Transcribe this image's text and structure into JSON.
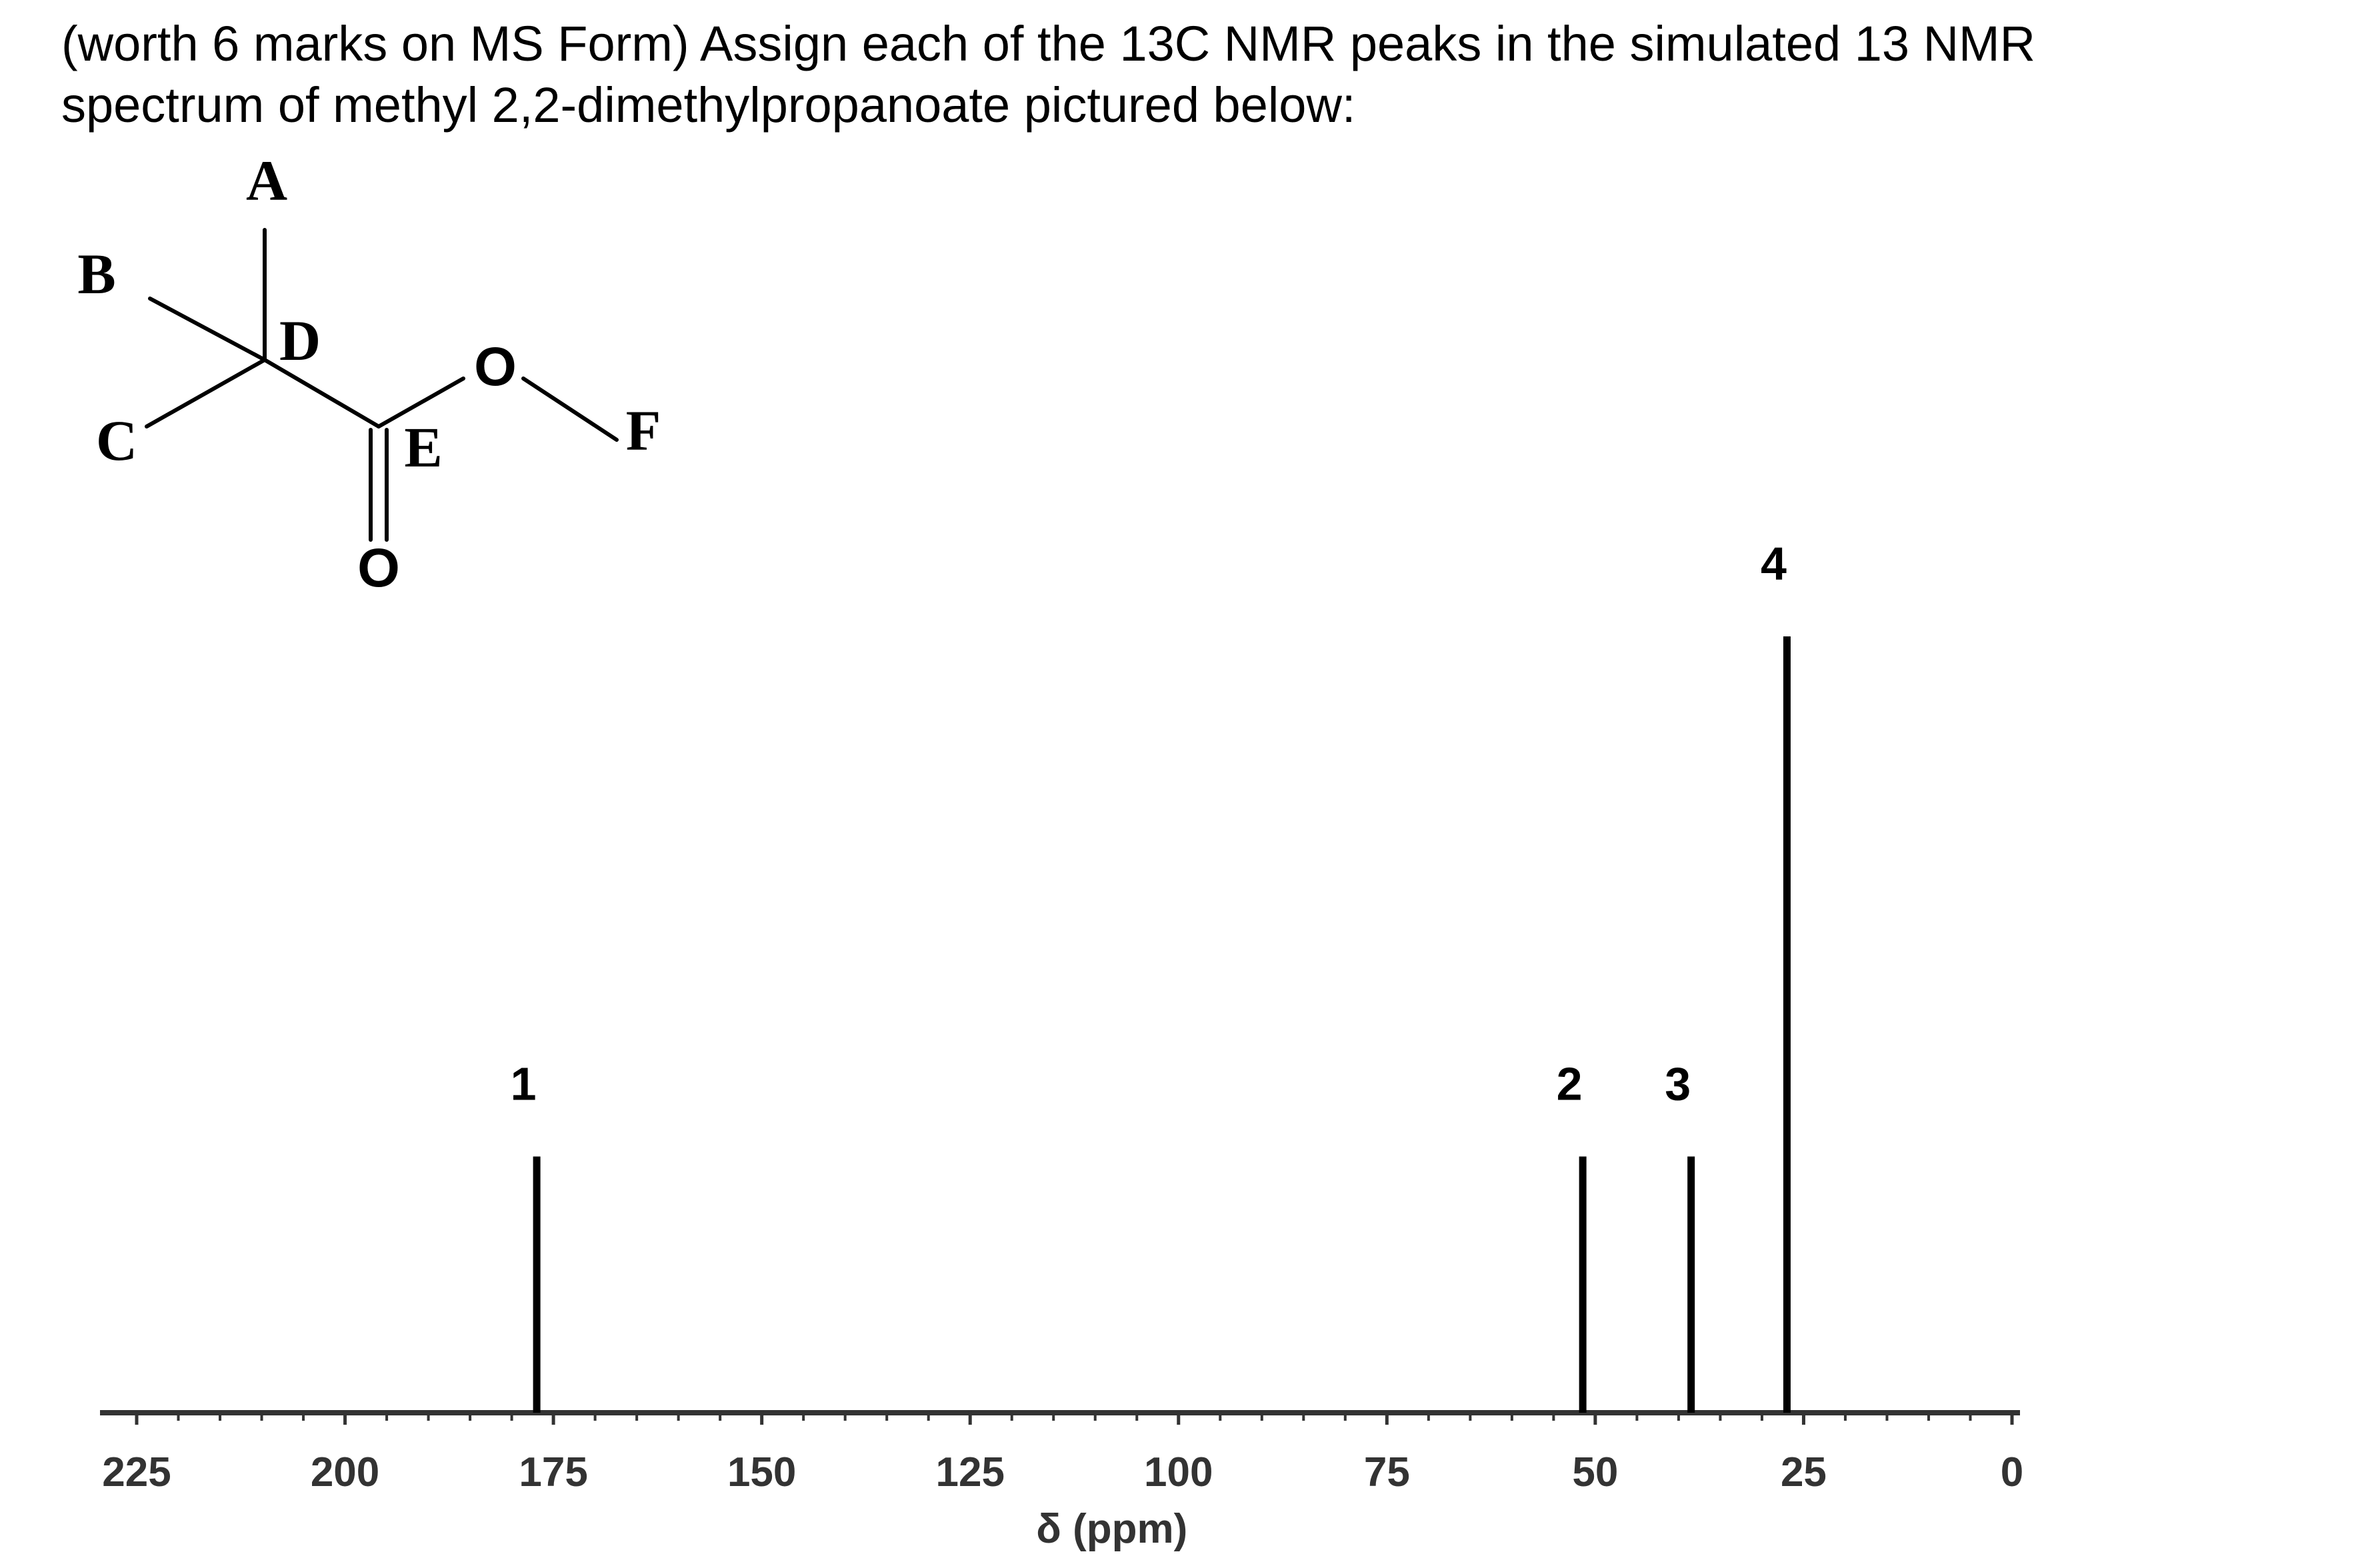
{
  "question": {
    "line1": "(worth 6 marks on MS Form)  Assign each of the 13C NMR peaks in the simulated 13 NMR",
    "line2": "spectrum of methyl 2,2-dimethylpropanoate pictured below:"
  },
  "structure": {
    "labels": {
      "A": "A",
      "B": "B",
      "C": "C",
      "D": "D",
      "E": "E",
      "F": "F"
    },
    "atoms": {
      "ester_o": "O",
      "carbonyl_o": "O"
    }
  },
  "chart_data": {
    "type": "bar",
    "title": "",
    "xlabel": "δ (ppm)",
    "ylabel": "",
    "xlim": [
      225,
      0
    ],
    "ylim": [
      0,
      1
    ],
    "grid": false,
    "ticks": [
      "225",
      "200",
      "175",
      "150",
      "125",
      "100",
      "75",
      "50",
      "25",
      "0"
    ],
    "peaks": [
      {
        "label": "1",
        "x": 177,
        "y": 0.33
      },
      {
        "label": "2",
        "x": 51.5,
        "y": 0.33
      },
      {
        "label": "3",
        "x": 38.5,
        "y": 0.33
      },
      {
        "label": "4",
        "x": 27,
        "y": 1.0
      }
    ]
  },
  "colors": {
    "ink": "#000000",
    "axis": "#333333"
  }
}
